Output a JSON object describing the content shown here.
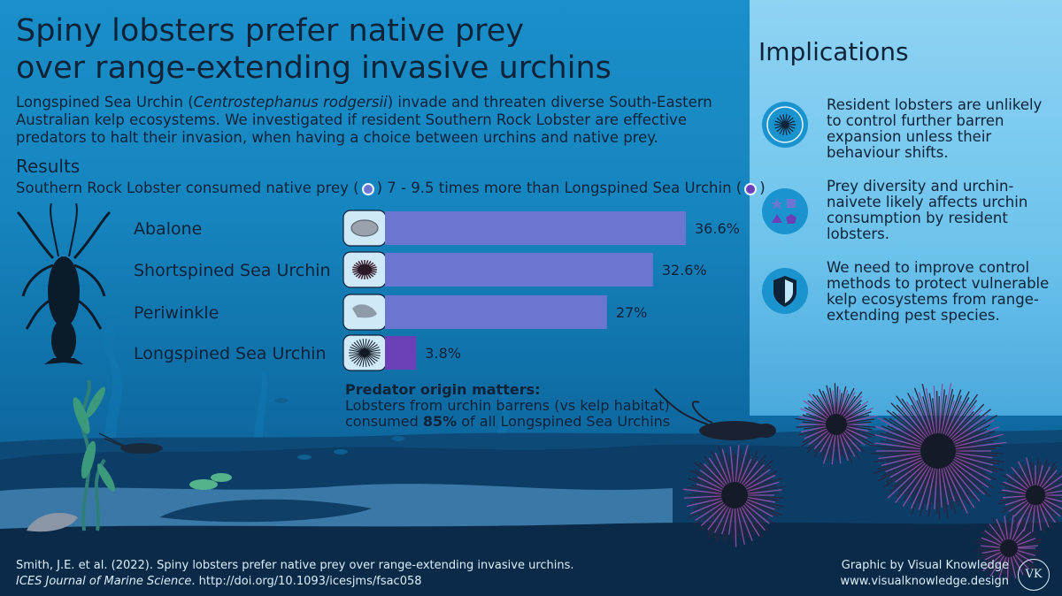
{
  "title": [
    "Spiny lobsters prefer native prey",
    "over range-extending invasive urchins"
  ],
  "intro": {
    "before": "Longspined Sea Urchin (",
    "italic": "Centrostephanus rodgersii",
    "after": ") invade and threaten diverse South-Eastern Australian kelp ecosystems. We investigated if resident Southern Rock Lobster are effective predators to halt their invasion, when having a choice between urchins and native prey."
  },
  "results": {
    "heading": "Results",
    "sub_before": "Southern Rock Lobster consumed native prey (",
    "sub_mid": ") 7 - 9.5 times more than Longspined Sea Urchin (",
    "sub_after": ")"
  },
  "chart_data": {
    "type": "bar",
    "orientation": "horizontal",
    "categories": [
      "Abalone",
      "Shortspined Sea Urchin",
      "Periwinkle",
      "Longspined Sea Urchin"
    ],
    "values": [
      36.6,
      32.6,
      27,
      3.8
    ],
    "value_labels": [
      "36.6%",
      "32.6%",
      "27%",
      "3.8%"
    ],
    "groups": [
      "native",
      "native",
      "native",
      "invasive"
    ],
    "colors": {
      "native": "#6a76cf",
      "invasive": "#6b3fb5"
    }
  },
  "origin_note": {
    "heading": "Predator origin matters:",
    "line1": "Lobsters from urchin barrens (vs kelp habitat)",
    "line2_before": "consumed ",
    "line2_bold": "85%",
    "line2_after": " of all Longspined Sea Urchins"
  },
  "implications": {
    "heading": "Implications",
    "items": [
      {
        "icon": "urchin-target-icon",
        "text": "Resident lobsters are unlikely to control further barren expansion unless their behaviour shifts."
      },
      {
        "icon": "prey-diversity-shapes-icon",
        "text": "Prey diversity and urchin-naivete likely affects urchin consumption by resident lobsters."
      },
      {
        "icon": "shield-icon",
        "text": "We need to improve control methods to protect vulnerable kelp ecosystems from range-extending pest species."
      }
    ]
  },
  "citation": {
    "line1": "Smith, J.E. et al. (2022). Spiny lobsters prefer native prey over range-extending invasive urchins.",
    "journal": "ICES Journal of Marine Science",
    "doi": ". http://doi.org/10.1093/icesjms/fsac058"
  },
  "credit": {
    "line1": "Graphic by Visual Knowledge",
    "line2": "www.visualknowledge.design",
    "logo": "VK"
  }
}
